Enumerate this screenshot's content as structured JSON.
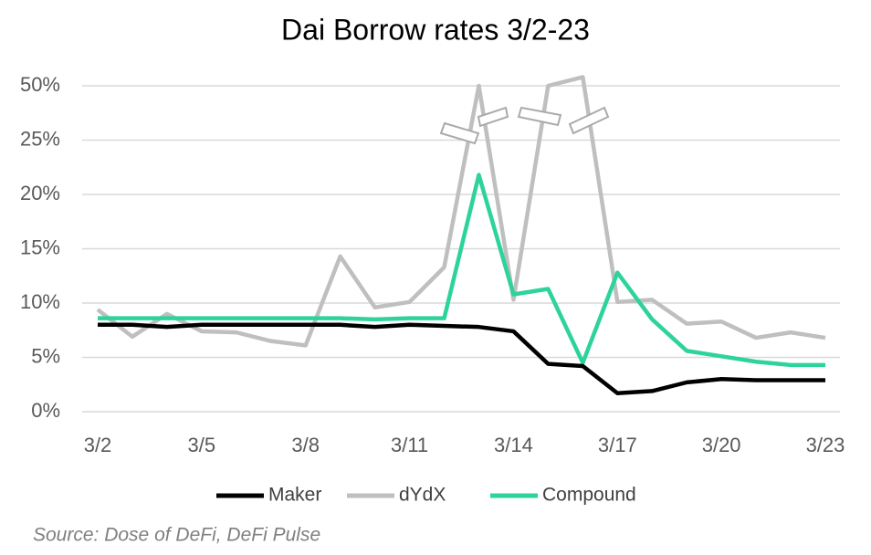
{
  "chart_data": {
    "type": "line",
    "title": "Dai Borrow rates 3/2-23",
    "categories": [
      "3/2",
      null,
      null,
      "3/5",
      null,
      null,
      "3/8",
      null,
      null,
      "3/11",
      null,
      null,
      "3/14",
      null,
      null,
      "3/17",
      null,
      null,
      "3/20",
      null,
      null,
      "3/23"
    ],
    "series": [
      {
        "name": "Maker",
        "color": "#000000",
        "values": [
          8,
          8,
          7.8,
          8,
          8,
          8,
          8,
          8,
          7.8,
          8,
          7.9,
          7.8,
          7.4,
          4.4,
          4.2,
          1.7,
          1.9,
          2.7,
          3.0,
          2.9,
          2.9,
          2.9
        ]
      },
      {
        "name": "dYdX",
        "color": "#bfbfbf",
        "values": [
          9.4,
          6.9,
          9.0,
          7.4,
          7.3,
          6.5,
          6.1,
          14.3,
          9.6,
          10.1,
          13.3,
          50,
          10.3,
          50,
          54,
          10.1,
          10.3,
          8.1,
          8.3,
          6.8,
          7.3,
          6.8
        ]
      },
      {
        "name": "Compound",
        "color": "#2ed39b",
        "values": [
          8.6,
          8.6,
          8.6,
          8.6,
          8.6,
          8.6,
          8.6,
          8.6,
          8.5,
          8.6,
          8.6,
          21.8,
          10.8,
          11.3,
          4.5,
          12.8,
          8.5,
          5.6,
          5.1,
          4.6,
          4.3,
          4.3
        ]
      }
    ],
    "ylim": [
      0,
      50
    ],
    "yticks": [
      {
        "value": 0,
        "label": "0%"
      },
      {
        "value": 5,
        "label": "5%"
      },
      {
        "value": 10,
        "label": "10%"
      },
      {
        "value": 15,
        "label": "15%"
      },
      {
        "value": 20,
        "label": "20%"
      },
      {
        "value": 25,
        "label": "25%"
      },
      {
        "value": 50,
        "label": "50%"
      }
    ],
    "grid": true,
    "legend": "bottom",
    "annotation": "Source: Dose of DeFi, DeFi Pulse"
  }
}
